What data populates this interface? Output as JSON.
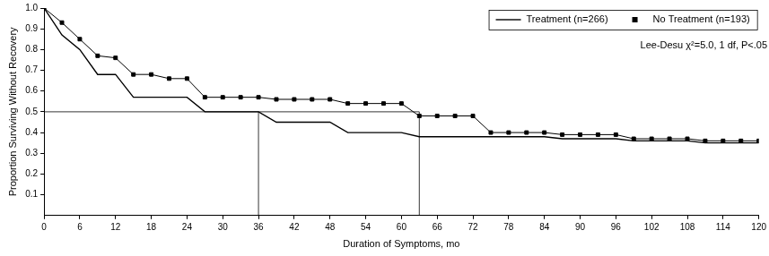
{
  "chart_data": {
    "type": "line",
    "x_label": "Duration of Symptoms, mo",
    "y_label": "Proportion Surviving Without Recovery",
    "annotation": "Lee-Desu χ²=5.0, 1 df, P<.05",
    "x": [
      0,
      3,
      6,
      9,
      12,
      15,
      18,
      21,
      24,
      27,
      30,
      33,
      36,
      39,
      42,
      45,
      48,
      51,
      54,
      57,
      60,
      63,
      66,
      69,
      72,
      75,
      78,
      81,
      84,
      87,
      90,
      93,
      96,
      99,
      102,
      105,
      108,
      111,
      114,
      117,
      120
    ],
    "series": [
      {
        "name": "Treatment (n=266)",
        "color": "#000000",
        "marker": "none",
        "line_style": "solid",
        "values": [
          1.0,
          0.87,
          0.8,
          0.68,
          0.68,
          0.57,
          0.57,
          0.57,
          0.57,
          0.5,
          0.5,
          0.5,
          0.5,
          0.45,
          0.45,
          0.45,
          0.45,
          0.4,
          0.4,
          0.4,
          0.4,
          0.38,
          0.38,
          0.38,
          0.38,
          0.38,
          0.38,
          0.38,
          0.38,
          0.37,
          0.37,
          0.37,
          0.37,
          0.36,
          0.36,
          0.36,
          0.36,
          0.35,
          0.35,
          0.35,
          0.35
        ]
      },
      {
        "name": "No Treatment (n=193)",
        "color": "#000000",
        "marker": "square",
        "line_style": "solid",
        "values": [
          1.0,
          0.93,
          0.85,
          0.77,
          0.76,
          0.68,
          0.68,
          0.66,
          0.66,
          0.57,
          0.57,
          0.57,
          0.57,
          0.56,
          0.56,
          0.56,
          0.56,
          0.54,
          0.54,
          0.54,
          0.54,
          0.48,
          0.48,
          0.48,
          0.48,
          0.4,
          0.4,
          0.4,
          0.4,
          0.39,
          0.39,
          0.39,
          0.39,
          0.37,
          0.37,
          0.37,
          0.37,
          0.36,
          0.36,
          0.36,
          0.36
        ]
      }
    ],
    "median_lines": {
      "y": 0.5,
      "x": [
        36,
        63
      ]
    },
    "xlim": [
      0,
      120
    ],
    "xticks": [
      0,
      6,
      12,
      18,
      24,
      30,
      36,
      42,
      48,
      54,
      60,
      66,
      72,
      78,
      84,
      90,
      96,
      102,
      108,
      114,
      120
    ],
    "ylim": [
      0,
      1
    ],
    "yticks": [
      0.1,
      0.2,
      0.3,
      0.4,
      0.5,
      0.6,
      0.7,
      0.8,
      0.9,
      {
        "value": 1,
        "label": "1.0"
      }
    ],
    "grid": false,
    "legend": "upper right"
  }
}
